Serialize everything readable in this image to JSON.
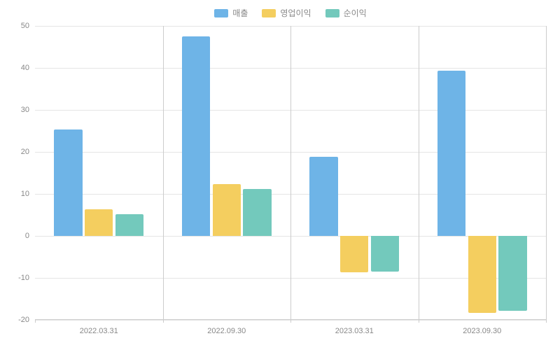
{
  "chart": {
    "type": "bar",
    "legend": {
      "position": "top-center",
      "fontsize": 12,
      "text_color": "#888888",
      "items": [
        {
          "label": "매출",
          "color": "#6eb4e7"
        },
        {
          "label": "영업이익",
          "color": "#f4ce5f"
        },
        {
          "label": "순이익",
          "color": "#73c9bc"
        }
      ]
    },
    "categories": [
      "2022.03.31",
      "2022.09.30",
      "2023.03.31",
      "2023.09.30"
    ],
    "series": [
      {
        "name": "매출",
        "color": "#6eb4e7",
        "values": [
          25.4,
          47.5,
          18.8,
          39.3
        ]
      },
      {
        "name": "영업이익",
        "color": "#f4ce5f",
        "values": [
          6.4,
          12.3,
          -8.6,
          -18.3
        ]
      },
      {
        "name": "순이익",
        "color": "#73c9bc",
        "values": [
          5.2,
          11.2,
          -8.5,
          -17.9
        ]
      }
    ],
    "ylim": [
      -20,
      50
    ],
    "ytick_step": 10,
    "yticks": [
      -20,
      -10,
      0,
      10,
      20,
      30,
      40,
      50
    ],
    "axis_fontsize": 11,
    "axis_text_color": "#888888",
    "background_color": "#ffffff",
    "grid_color": "#e5e5e5",
    "divider_color": "#cccccc",
    "bar_width_ratio": 0.22,
    "bar_gap_ratio": 0.02
  }
}
